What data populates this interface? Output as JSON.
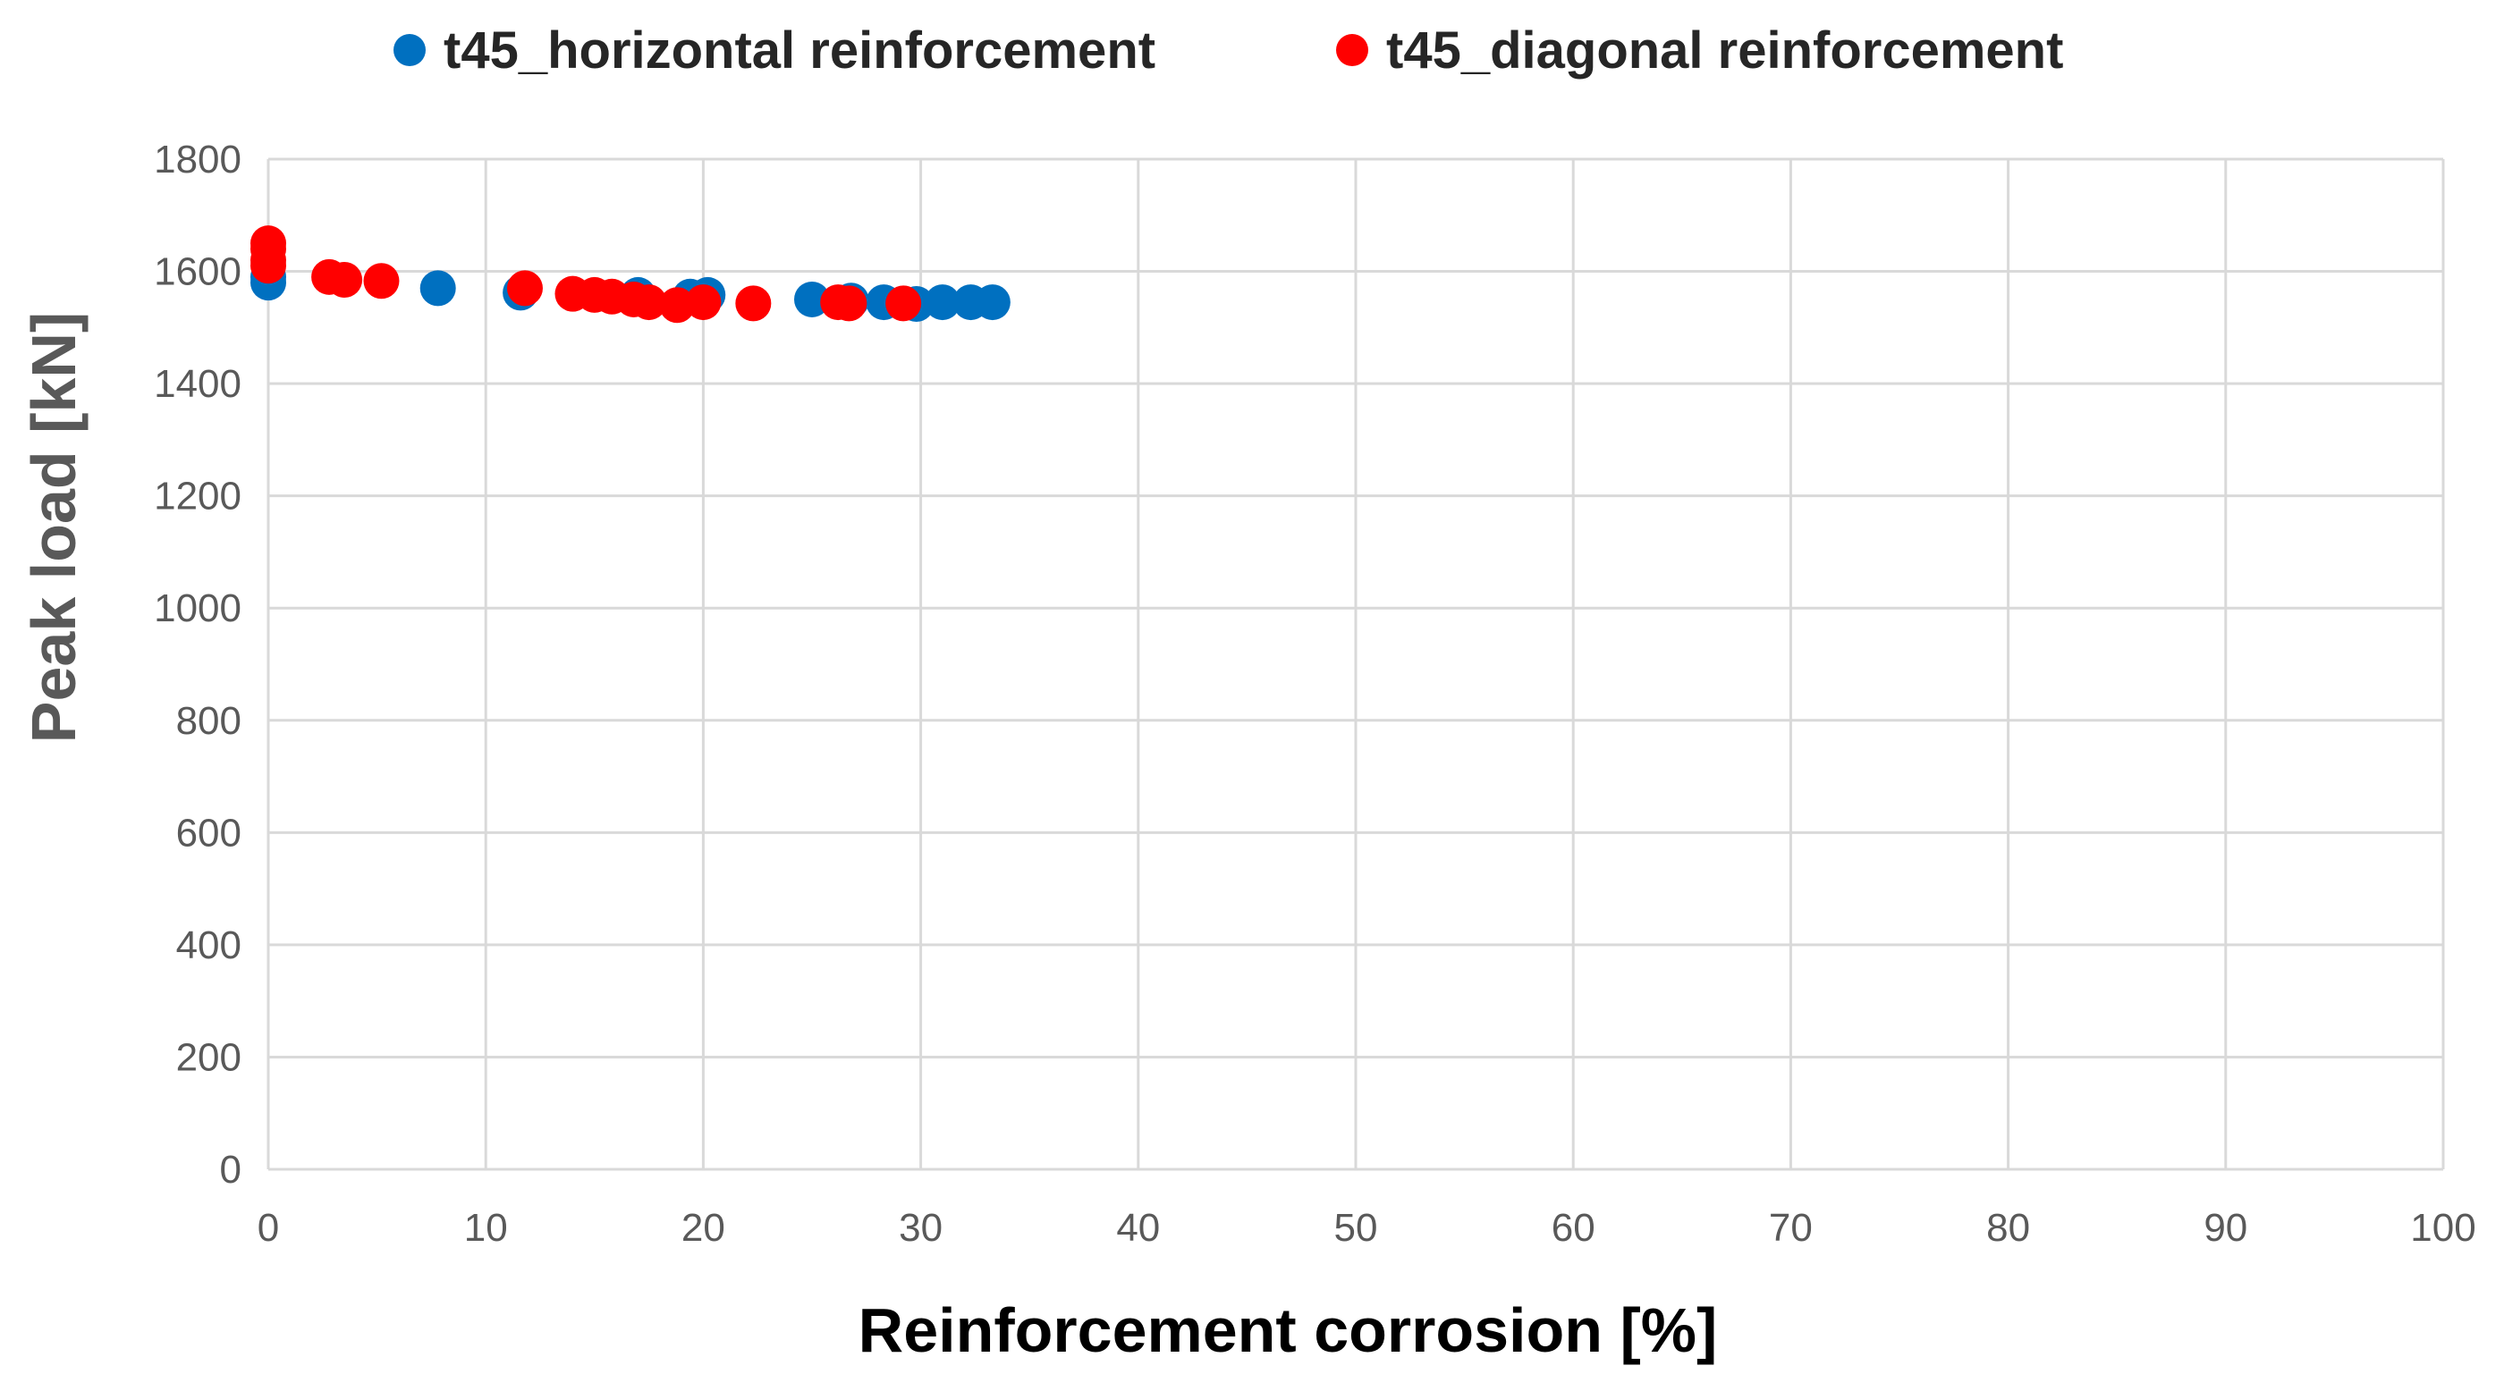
{
  "chart_data": {
    "type": "scatter",
    "xlabel": "Reinforcement corrosion [%]",
    "ylabel": "Peak load [kN]",
    "xlim": [
      0,
      100
    ],
    "ylim": [
      0,
      1800
    ],
    "xticks": [
      0,
      10,
      20,
      30,
      40,
      50,
      60,
      70,
      80,
      90,
      100
    ],
    "yticks": [
      0,
      200,
      400,
      600,
      800,
      1000,
      1200,
      1400,
      1600,
      1800
    ],
    "grid": true,
    "legend_position": "top",
    "series": [
      {
        "name": "t45_horizontal reinforcement",
        "color": "#0070C0",
        "points": [
          [
            0,
            1580
          ],
          [
            0,
            1590
          ],
          [
            7.8,
            1570
          ],
          [
            11.6,
            1562
          ],
          [
            17,
            1558
          ],
          [
            19.4,
            1555
          ],
          [
            20.2,
            1558
          ],
          [
            25,
            1550
          ],
          [
            26.8,
            1548
          ],
          [
            28.3,
            1545
          ],
          [
            29.8,
            1542
          ],
          [
            31,
            1545
          ],
          [
            32.3,
            1545
          ],
          [
            33.3,
            1545
          ]
        ]
      },
      {
        "name": "t45_diagonal reinforcement",
        "color": "#FF0000",
        "points": [
          [
            0,
            1650
          ],
          [
            0,
            1640
          ],
          [
            0,
            1620
          ],
          [
            0,
            1610
          ],
          [
            2.8,
            1590
          ],
          [
            3.5,
            1585
          ],
          [
            5.2,
            1583
          ],
          [
            11.8,
            1570
          ],
          [
            14,
            1560
          ],
          [
            15,
            1558
          ],
          [
            15.8,
            1555
          ],
          [
            16.8,
            1550
          ],
          [
            17.5,
            1545
          ],
          [
            18.8,
            1540
          ],
          [
            20,
            1545
          ],
          [
            22.3,
            1543
          ],
          [
            26.2,
            1545
          ],
          [
            26.7,
            1543
          ],
          [
            29.2,
            1543
          ]
        ]
      }
    ]
  }
}
